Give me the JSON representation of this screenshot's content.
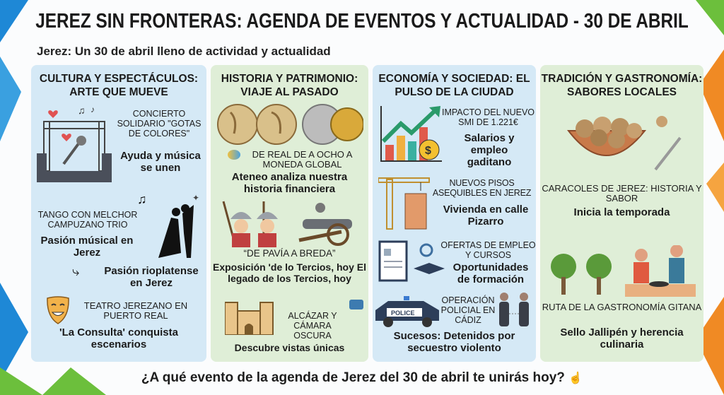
{
  "header": {
    "title": "JEREZ SIN FRONTERAS: AGENDA DE EVENTOS Y ACTUALIDAD - 30 DE ABRIL",
    "subtitle": "Jerez: Un 30 de abril lleno de actividad y actualidad"
  },
  "colors": {
    "panel_blue": "#d5e9f6",
    "panel_green": "#dfeed7",
    "accent_blue": "#1e88d6",
    "accent_orange": "#f08a24",
    "accent_green": "#6cbf3c"
  },
  "panels": [
    {
      "heading": "CULTURA Y ESPECTÁCULOS: ARTE QUE MUEVE",
      "items": [
        {
          "icon": "concert-stage-icon",
          "caption": "CONCIERTO SOLIDARIO \"GOTAS DE COLORES\"",
          "main": "Ayuda y música se unen"
        },
        {
          "icon": "tango-dancers-icon",
          "caption": "TANGO CON MELCHOR CAMPUZANO TRIO",
          "main": "Pasión músical en Jerez",
          "extra": "Pasión rioplatense en Jerez"
        },
        {
          "icon": "theater-mask-icon",
          "caption": "TEATRO JEREZANO EN PUERTO REAL",
          "main": "'La Consulta' conquista escenarios"
        }
      ]
    },
    {
      "heading": "HISTORIA Y PATRIMONIO: VIAJE AL PASADO",
      "items": [
        {
          "icon": "globes-coins-icon",
          "caption": "DE REAL DE A OCHO A MONEDA GLOBAL",
          "main": "Ateneo analiza nuestra historia financiera"
        },
        {
          "icon": "soldiers-cannon-icon",
          "caption": "“DE PAVÍA A BREDA”",
          "main": "Exposición 'de lo Tercios, hoy El legado de los Tercios, hoy"
        },
        {
          "icon": "castle-icon",
          "caption": "ALCÁZAR Y CÁMARA OSCURA",
          "main": "Descubre vistas únicas"
        }
      ]
    },
    {
      "heading": "ECONOMÍA Y SOCIEDAD: EL PULSO DE LA CIUDAD",
      "items": [
        {
          "icon": "growth-chart-icon",
          "caption": "IMPACTO DEL NUEVO SMI DE 1.221€",
          "main": "Salarios y empleo gaditano"
        },
        {
          "icon": "construction-crane-icon",
          "caption": "NUEVOS PISOS ASEQUIBLES EN JEREZ",
          "main": "Vivienda en calle Pizarro"
        },
        {
          "icon": "job-training-icon",
          "caption": "OFERTAS DE EMPLEO Y CURSOS",
          "main": "Oportunidades de formación"
        },
        {
          "icon": "police-car-icon",
          "caption": "OPERACIÓN POLICIAL EN CÁDIZ",
          "main": "Sucesos: Detenidos por secuestro violento",
          "badge": "POLICE"
        }
      ]
    },
    {
      "heading": "TRADICIÓN Y GASTRONOMÍA: SABORES LOCALES",
      "items": [
        {
          "icon": "snail-bowl-icon",
          "caption": "CARACOLES DE JEREZ: HISTORIA Y SABOR",
          "main": "Inicia la temporada"
        },
        {
          "icon": "cooking-couple-icon",
          "caption": "RUTA DE LA GASTRONOMÍA GITANA",
          "main": "Sello Jallipén y herencia culinaria"
        }
      ]
    }
  ],
  "footer": {
    "question": "¿A qué evento de la agenda de Jerez del 30 de abril te unirás hoy?"
  }
}
